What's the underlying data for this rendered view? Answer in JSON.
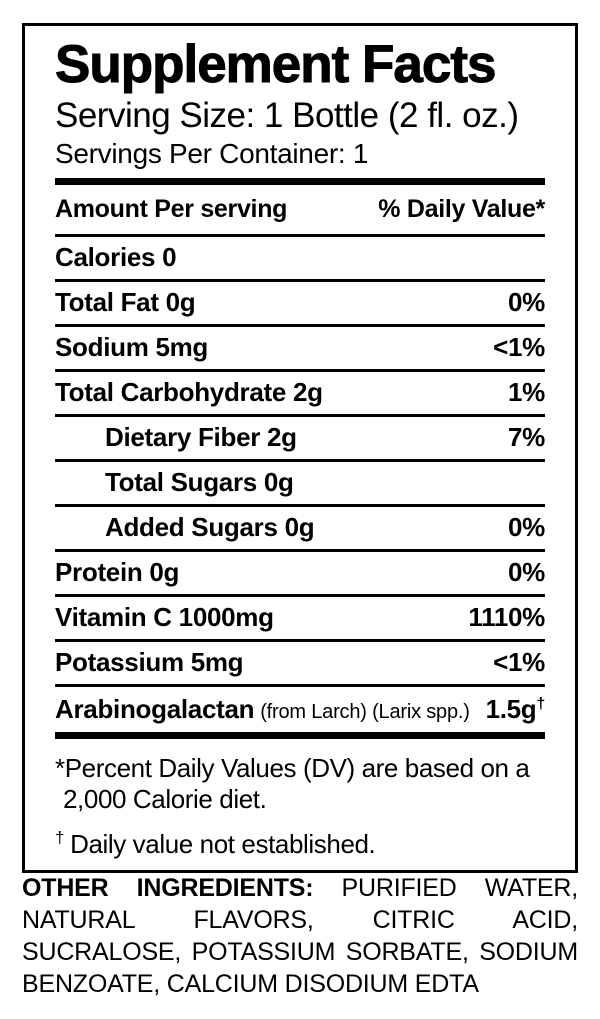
{
  "page": {
    "background_color": "#ffffff",
    "text_color": "#000000"
  },
  "supplement_facts": {
    "title": "Supplement Facts",
    "serving_size": "Serving Size: 1 Bottle (2 fl. oz.)",
    "servings_per_container": "Servings Per Container: 1",
    "column_headers": {
      "left": "Amount Per serving",
      "right": "% Daily Value*"
    },
    "rows": [
      {
        "name": "Calories 0",
        "value": "",
        "indent": false
      },
      {
        "name": "Total Fat 0g",
        "value": "0%",
        "indent": false
      },
      {
        "name": "Sodium 5mg",
        "value": "<1%",
        "indent": false
      },
      {
        "name": "Total Carbohydrate 2g",
        "value": "1%",
        "indent": false
      },
      {
        "name": "Dietary Fiber 2g",
        "value": "7%",
        "indent": true
      },
      {
        "name": "Total Sugars 0g",
        "value": "",
        "indent": true
      },
      {
        "name": "Added Sugars 0g",
        "value": "0%",
        "indent": true
      },
      {
        "name": "Protein 0g",
        "value": "0%",
        "indent": false
      },
      {
        "name": "Vitamin C 1000mg",
        "value": "1110%",
        "indent": false
      },
      {
        "name": "Potassium 5mg",
        "value": "<1%",
        "indent": false
      },
      {
        "name": "Arabinogalactan",
        "name_note": "(from Larch) (Larix spp.)",
        "value": "1.5g",
        "value_sup": "†",
        "indent": false
      }
    ],
    "footnote_daily_value": {
      "line1": "*Percent Daily Values (DV) are based on a",
      "line2": "2,000 Calorie diet."
    },
    "footnote_dagger": {
      "symbol": "†",
      "text": "Daily value not established."
    }
  },
  "other_ingredients": {
    "lead": "OTHER INGREDIENTS:",
    "text": "PURIFIED WATER, NATURAL FLAVORS, CITRIC ACID, SUCRALOSE, POTASSIUM SORBATE, SODIUM BENZOATE, CALCIUM DISODIUM EDTA"
  }
}
